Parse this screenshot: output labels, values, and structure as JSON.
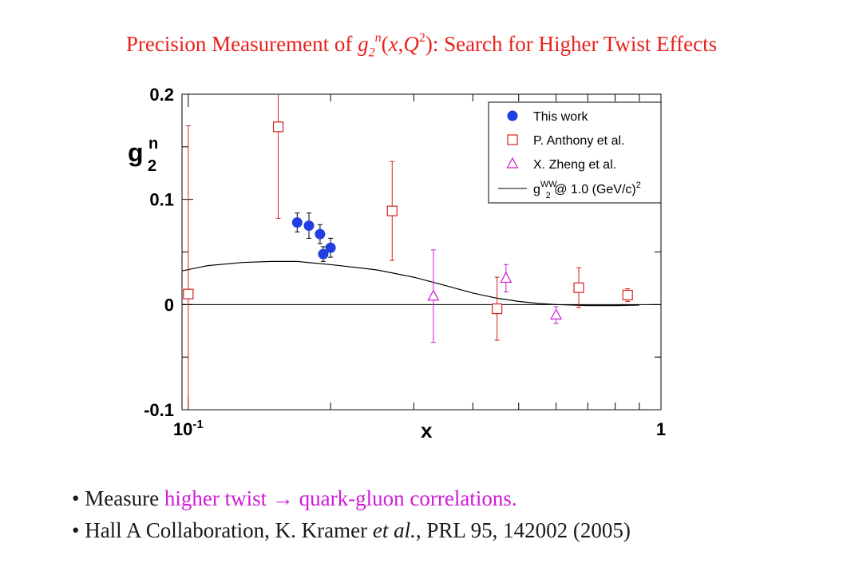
{
  "title": {
    "prefix": "Precision Measurement  of ",
    "g": "g",
    "sub": "2",
    "sup_n": "n",
    "open": "(",
    "x": "x",
    "comma": ",",
    "Q": "Q",
    "sup_2": "2",
    "close": ")",
    "suffix": ": Search for Higher Twist Effects"
  },
  "bullets": {
    "b1_dot": "•",
    "b1_prefix": "Measure ",
    "b1_highlight": "higher twist  → quark-gluon correlations.",
    "b2_dot": "•",
    "b2_prefix": "Hall A Collaboration, K. Kramer ",
    "b2_etal": "et al.",
    "b2_suffix": ",  PRL 95, 142002 (2005)"
  },
  "colors": {
    "this_work": "#1f3fe0",
    "anthony": "#d42020",
    "zheng": "#d11ad6",
    "curve": "#000000"
  },
  "chart_data": {
    "type": "scatter",
    "xlabel": "x",
    "ylabel": "g",
    "ylabel_sub": "2",
    "ylabel_sup": "n",
    "xscale": "log",
    "xlim": [
      0.097,
      1.0
    ],
    "ylim": [
      -0.1,
      0.2
    ],
    "xticks": [
      {
        "value": 0.1,
        "label": "10",
        "sup": "-1"
      },
      {
        "value": 1.0,
        "label": "1",
        "sup": ""
      }
    ],
    "yticks": [
      {
        "value": 0.2,
        "label": "0.2"
      },
      {
        "value": 0.1,
        "label": "0.1"
      },
      {
        "value": 0.0,
        "label": "0"
      },
      {
        "value": -0.1,
        "label": "-0.1"
      }
    ],
    "zero_line": true,
    "legend_position": "top-right",
    "legend": [
      {
        "series": "this_work",
        "label": "This work"
      },
      {
        "series": "anthony",
        "label": "P. Anthony et al."
      },
      {
        "series": "zheng",
        "label": "X. Zheng et al."
      },
      {
        "series": "curve",
        "label_main": "g",
        "label_sub": "2",
        "label_sup": "WW",
        "label_rest": " @ 1.0 (GeV/c)",
        "label_pow": "2"
      }
    ],
    "series": [
      {
        "id": "this_work",
        "marker": "circle",
        "points": [
          {
            "x": 0.17,
            "y": 0.078,
            "err": 0.009
          },
          {
            "x": 0.18,
            "y": 0.075,
            "err": 0.012
          },
          {
            "x": 0.19,
            "y": 0.067,
            "err": 0.009
          },
          {
            "x": 0.193,
            "y": 0.048,
            "err": 0.007
          },
          {
            "x": 0.2,
            "y": 0.054,
            "err": 0.009
          }
        ]
      },
      {
        "id": "anthony",
        "marker": "square",
        "points": [
          {
            "x": 0.1,
            "y": 0.01,
            "err": 0.16
          },
          {
            "x": 0.155,
            "y": 0.169,
            "err": 0.087
          },
          {
            "x": 0.27,
            "y": 0.089,
            "err": 0.047
          },
          {
            "x": 0.45,
            "y": -0.004,
            "err": 0.03
          },
          {
            "x": 0.67,
            "y": 0.016,
            "err": 0.019
          },
          {
            "x": 0.85,
            "y": 0.009,
            "err": 0.006
          }
        ]
      },
      {
        "id": "zheng",
        "marker": "triangle",
        "points": [
          {
            "x": 0.33,
            "y": 0.008,
            "err": 0.044
          },
          {
            "x": 0.47,
            "y": 0.025,
            "err": 0.013
          },
          {
            "x": 0.6,
            "y": -0.01,
            "err": 0.008
          }
        ]
      },
      {
        "id": "curve",
        "marker": "line",
        "points": [
          {
            "x": 0.097,
            "y": 0.032
          },
          {
            "x": 0.11,
            "y": 0.037
          },
          {
            "x": 0.13,
            "y": 0.04
          },
          {
            "x": 0.15,
            "y": 0.041
          },
          {
            "x": 0.17,
            "y": 0.041
          },
          {
            "x": 0.2,
            "y": 0.038
          },
          {
            "x": 0.25,
            "y": 0.033
          },
          {
            "x": 0.3,
            "y": 0.026
          },
          {
            "x": 0.35,
            "y": 0.018
          },
          {
            "x": 0.4,
            "y": 0.011
          },
          {
            "x": 0.45,
            "y": 0.006
          },
          {
            "x": 0.5,
            "y": 0.003
          },
          {
            "x": 0.55,
            "y": 0.001
          },
          {
            "x": 0.6,
            "y": 0.0
          },
          {
            "x": 0.65,
            "y": -0.0005
          },
          {
            "x": 0.7,
            "y": -0.001
          },
          {
            "x": 0.8,
            "y": -0.001
          },
          {
            "x": 0.9,
            "y": -0.0005
          }
        ]
      }
    ]
  }
}
